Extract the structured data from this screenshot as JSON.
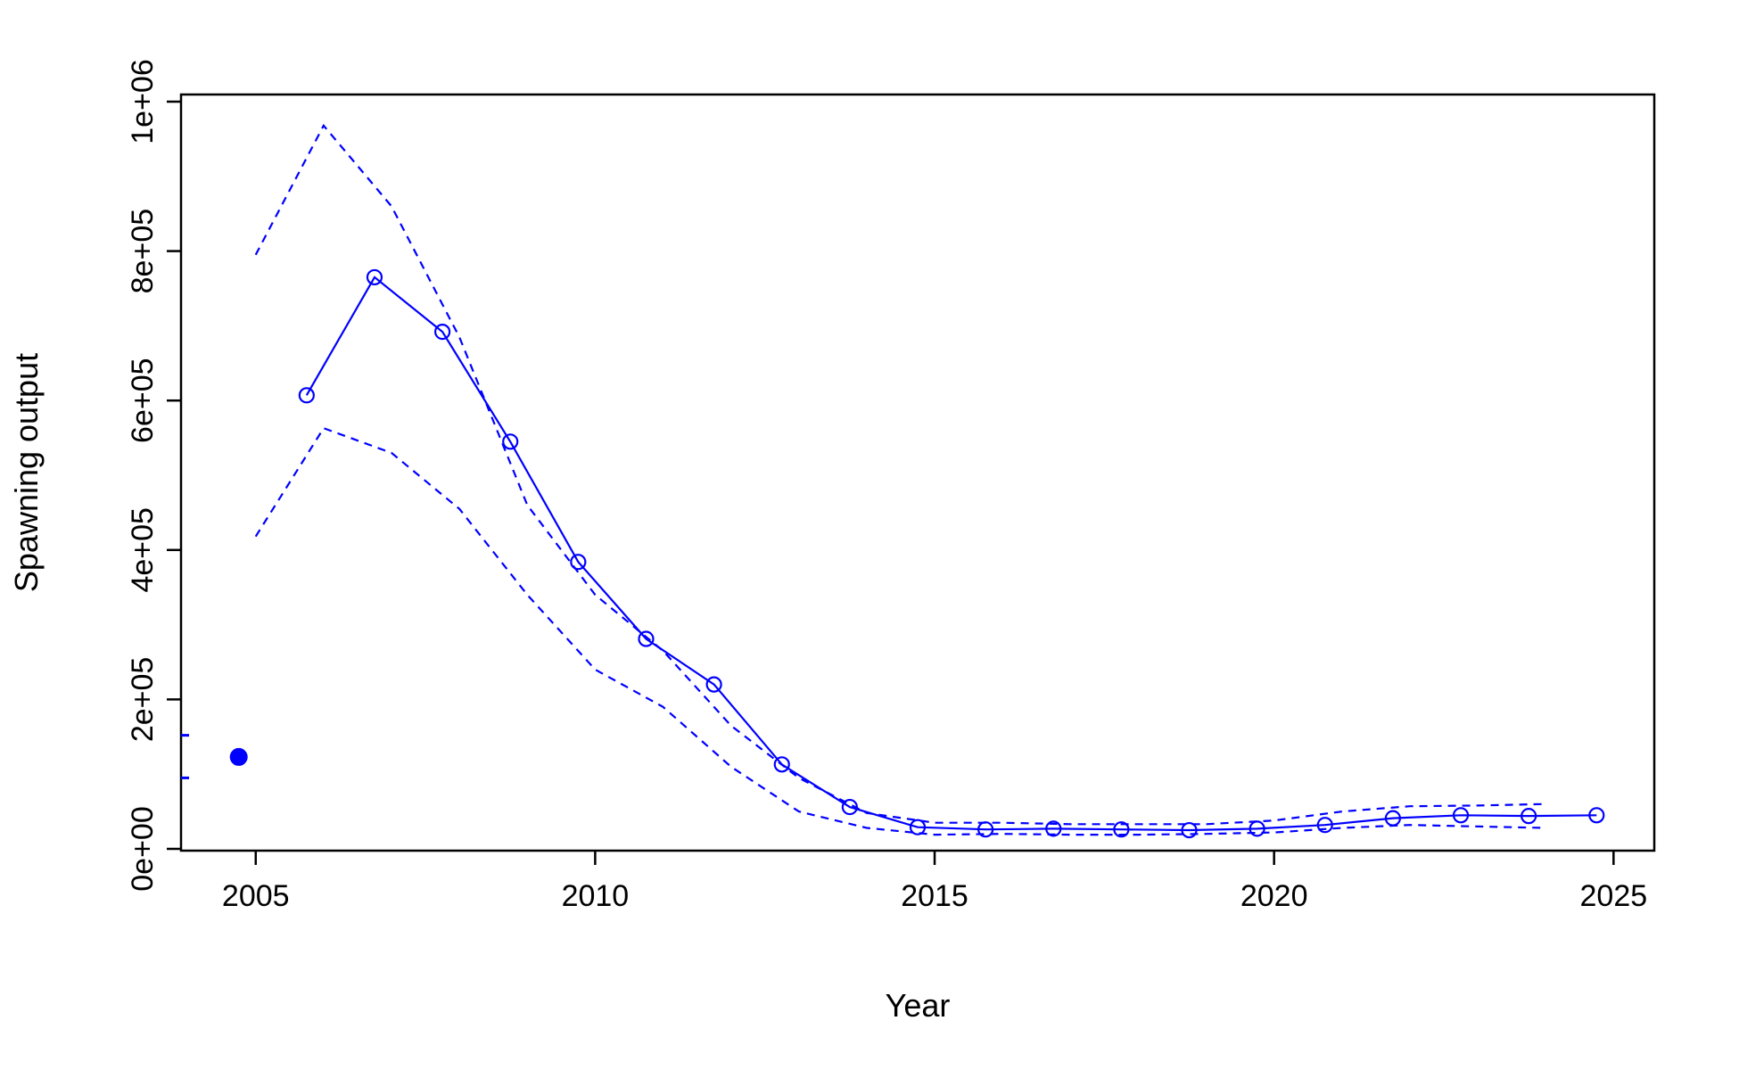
{
  "chart_data": {
    "type": "line",
    "title": "",
    "xlabel": "Year",
    "ylabel": "Spawning output",
    "xlim": [
      2003.9,
      2025.6
    ],
    "ylim": [
      0,
      1000000
    ],
    "x_ticks": [
      2005,
      2010,
      2015,
      2020,
      2025
    ],
    "x_tick_labels": [
      "2005",
      "2010",
      "2015",
      "2020",
      "2025"
    ],
    "y_ticks": [
      0,
      200000,
      400000,
      600000,
      800000,
      1000000
    ],
    "y_tick_labels": [
      "0e+00",
      "2e+05",
      "4e+05",
      "6e+05",
      "8e+05",
      "1e+06"
    ],
    "grid": false,
    "colors": {
      "series": "#0000ff",
      "axis": "#000000",
      "background": "#ffffff"
    },
    "virgin_point": {
      "x": 2004.75,
      "y": 123000,
      "ci_low": 95000,
      "ci_high": 152000
    },
    "series": [
      {
        "x": [
          2005.75,
          2006.75,
          2007.75,
          2008.75,
          2009.75,
          2010.75,
          2011.75,
          2012.75,
          2013.75,
          2014.75,
          2015.75,
          2016.75,
          2017.75,
          2018.75,
          2019.75,
          2020.75,
          2021.75,
          2022.75,
          2023.75,
          2024.75
        ],
        "values": [
          607000,
          765000,
          692000,
          545000,
          384000,
          281000,
          220000,
          113000,
          56000,
          29000,
          26000,
          27000,
          26000,
          25000,
          27000,
          32000,
          41000,
          45000,
          44000,
          45000
        ],
        "marker": "open-circle",
        "line": "solid"
      },
      {
        "x": [
          2005,
          2006,
          2007,
          2008,
          2009,
          2010,
          2011,
          2012,
          2013,
          2014,
          2015,
          2016,
          2017,
          2018,
          2019,
          2020,
          2021,
          2022,
          2023,
          2024
        ],
        "values": [
          795000,
          968000,
          860000,
          685000,
          460000,
          340000,
          265000,
          165000,
          95000,
          48000,
          35000,
          35000,
          33000,
          33000,
          33000,
          38000,
          50000,
          57000,
          58000,
          60000
        ],
        "line": "dashed"
      },
      {
        "x": [
          2005,
          2006,
          2007,
          2008,
          2009,
          2010,
          2011,
          2012,
          2013,
          2014,
          2015,
          2016,
          2017,
          2018,
          2019,
          2020,
          2021,
          2022,
          2023,
          2024
        ],
        "values": [
          418000,
          563000,
          530000,
          455000,
          340000,
          240000,
          190000,
          110000,
          50000,
          28000,
          19000,
          20000,
          19000,
          19000,
          20000,
          22000,
          28000,
          32000,
          30000,
          28000
        ],
        "line": "dashed"
      }
    ]
  }
}
